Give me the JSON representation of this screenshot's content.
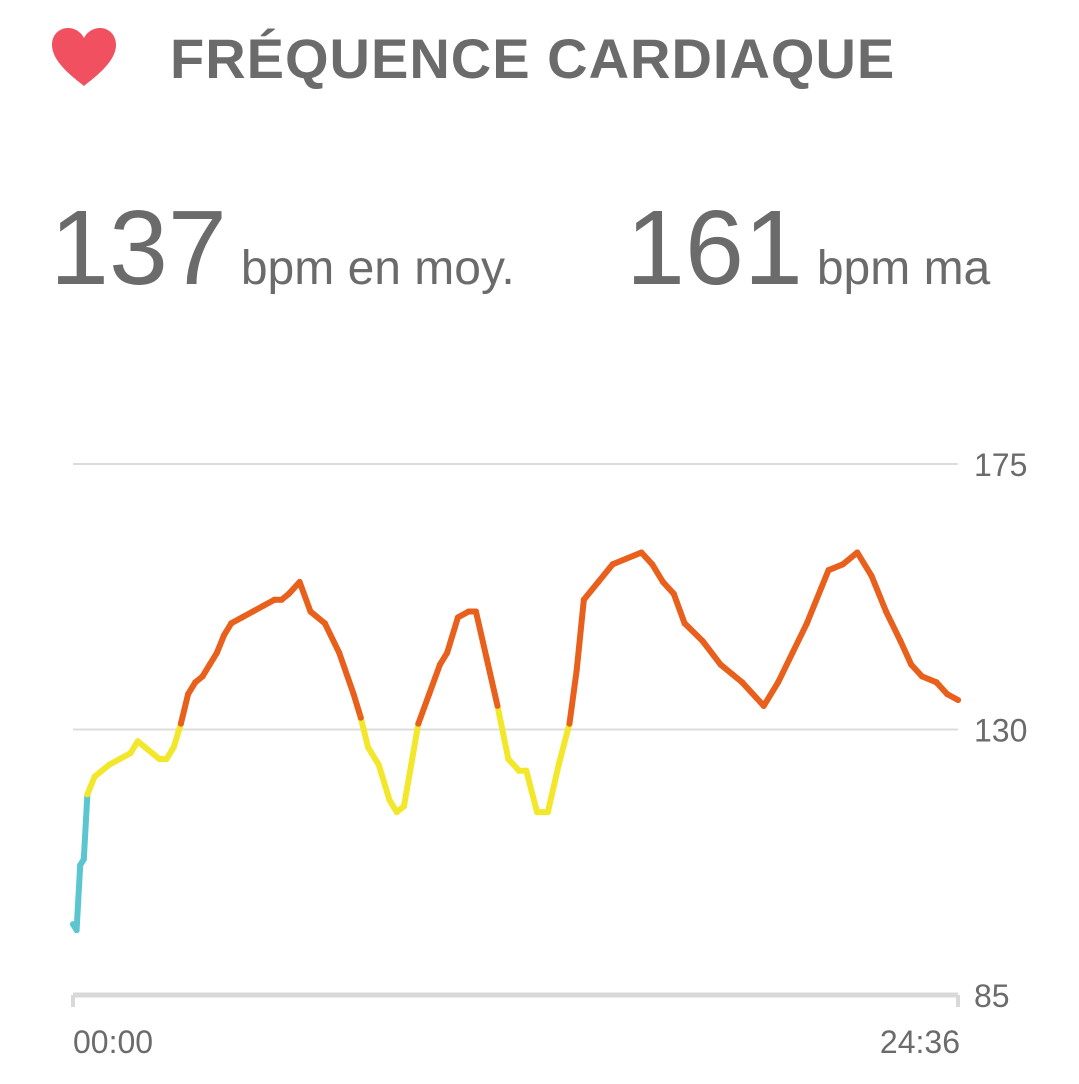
{
  "header": {
    "title": "FRÉQUENCE CARDIAQUE",
    "icon": "heart-icon",
    "icon_color": "#f0505f"
  },
  "stats": {
    "avg": {
      "value": "137",
      "unit": "bpm en moy."
    },
    "max": {
      "value": "161",
      "unit": "bpm ma"
    }
  },
  "chart_data": {
    "type": "line",
    "xlabel": "",
    "ylabel": "",
    "xlim": [
      0,
      24.6
    ],
    "ylim": [
      85,
      175
    ],
    "y_ticks": [
      175,
      130,
      85
    ],
    "x_tick_labels": [
      "00:00",
      "24:36"
    ],
    "grid": true,
    "zones": [
      {
        "min": 0,
        "max": 115,
        "color": "#5bc6d0"
      },
      {
        "min": 115,
        "max": 130,
        "color": "#f3e72c"
      },
      {
        "min": 130,
        "max": 200,
        "color": "#e8601c"
      }
    ],
    "series": [
      {
        "x": [
          0,
          0.1,
          0.2,
          0.3,
          0.4,
          0.6,
          0.8,
          1.0,
          1.3,
          1.6,
          1.8,
          2.0,
          2.2,
          2.4,
          2.6,
          2.8,
          3.0,
          3.2,
          3.4,
          3.6,
          3.8,
          4.0,
          4.2,
          4.4,
          4.7,
          5.0,
          5.3,
          5.6,
          5.8,
          6.0,
          6.3,
          6.6,
          7.0,
          7.4,
          7.8,
          8.0,
          8.2,
          8.5,
          8.8,
          9.0,
          9.2,
          9.4,
          9.6,
          9.9,
          10.2,
          10.4,
          10.7,
          11.0,
          11.2,
          11.5,
          11.8,
          12.1,
          12.4,
          12.6,
          12.9,
          13.2,
          13.5,
          13.8,
          14.0,
          14.2,
          14.6,
          15.0,
          15.4,
          15.8,
          16.1,
          16.4,
          16.7,
          17.0,
          17.5,
          18.0,
          18.6,
          19.2,
          19.6,
          20.0,
          20.4,
          20.8,
          21.0,
          21.4,
          21.8,
          22.2,
          22.6,
          23.0,
          23.3,
          23.6,
          24.0,
          24.3,
          24.6
        ],
        "y": [
          97,
          96,
          107,
          108,
          119,
          122,
          123,
          124,
          125,
          126,
          128,
          127,
          126,
          125,
          125,
          127,
          131,
          136,
          138,
          139,
          141,
          143,
          146,
          148,
          149,
          150,
          151,
          152,
          152,
          153,
          155,
          150,
          148,
          143,
          136,
          132,
          127,
          124,
          118,
          116,
          117,
          124,
          131,
          136,
          141,
          143,
          149,
          150,
          150,
          142,
          134,
          125,
          123,
          123,
          116,
          116,
          124,
          131,
          140,
          152,
          155,
          158,
          159,
          160,
          158,
          155,
          153,
          148,
          145,
          141,
          138,
          134,
          138,
          143,
          148,
          154,
          157,
          158,
          160,
          156,
          150,
          145,
          141,
          139,
          138,
          136,
          135
        ]
      }
    ]
  }
}
